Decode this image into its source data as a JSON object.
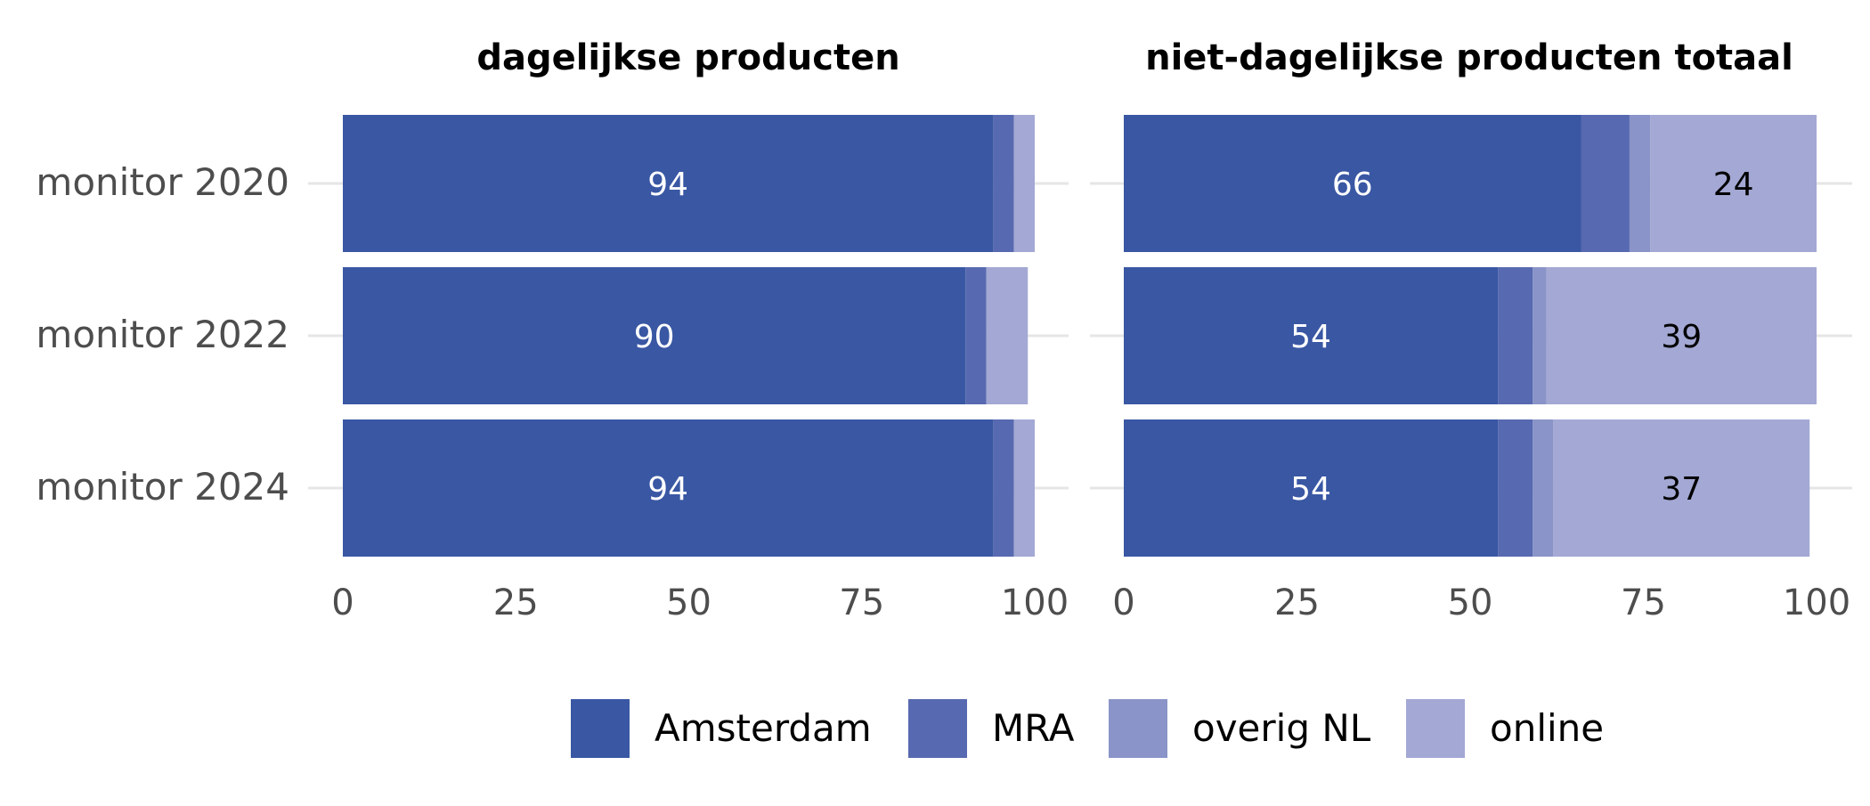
{
  "chart_data": {
    "type": "bar",
    "orientation": "horizontal",
    "stacked": true,
    "categories": [
      "monitor 2020",
      "monitor 2022",
      "monitor 2024"
    ],
    "xlim": [
      0,
      100
    ],
    "xticks": [
      "0",
      "25",
      "50",
      "75",
      "100"
    ],
    "grid": true,
    "legend_position": "bottom",
    "legend": [
      {
        "name": "Amsterdam",
        "color": "#3957a3"
      },
      {
        "name": "MRA",
        "color": "#5769b0"
      },
      {
        "name": "overig NL",
        "color": "#8a94c8"
      },
      {
        "name": "online",
        "color": "#a3a8d4"
      }
    ],
    "panels": [
      {
        "title": "dagelijkse producten",
        "series": [
          {
            "name": "Amsterdam",
            "values": [
              94,
              90,
              94
            ]
          },
          {
            "name": "MRA",
            "values": [
              3,
              3,
              3
            ]
          },
          {
            "name": "overig NL",
            "values": [
              0,
              0,
              0
            ]
          },
          {
            "name": "online",
            "values": [
              3,
              6,
              3
            ]
          }
        ],
        "data_labels": [
          {
            "series": "Amsterdam",
            "values": [
              "94",
              "90",
              "94"
            ]
          }
        ]
      },
      {
        "title": "niet-dagelijkse producten totaal",
        "series": [
          {
            "name": "Amsterdam",
            "values": [
              66,
              54,
              54
            ]
          },
          {
            "name": "MRA",
            "values": [
              7,
              5,
              5
            ]
          },
          {
            "name": "overig NL",
            "values": [
              3,
              2,
              3
            ]
          },
          {
            "name": "online",
            "values": [
              24,
              39,
              37
            ]
          }
        ],
        "data_labels": [
          {
            "series": "Amsterdam",
            "values": [
              "66",
              "54",
              "54"
            ]
          },
          {
            "series": "online",
            "values": [
              "24",
              "39",
              "37"
            ]
          }
        ]
      }
    ]
  }
}
